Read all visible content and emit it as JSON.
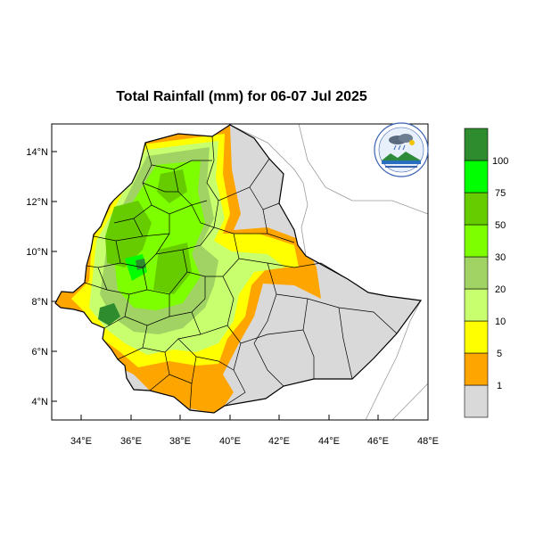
{
  "title": "Total Rainfall (mm) for 06-07 Jul 2025",
  "axes": {
    "lat_ticks": [
      "14°N",
      "12°N",
      "10°N",
      "8°N",
      "6°N",
      "4°N"
    ],
    "lon_ticks": [
      "34°E",
      "36°E",
      "38°E",
      "40°E",
      "42°E",
      "44°E",
      "46°E",
      "48°E"
    ]
  },
  "legend": {
    "labels": [
      "1",
      "5",
      "10",
      "20",
      "30",
      "50",
      "75",
      "100"
    ],
    "colors": [
      "#d9d9d9",
      "#ffa500",
      "#ffff00",
      "#c8ff6e",
      "#a0d264",
      "#7dff00",
      "#66cc00",
      "#00ff00",
      "#2e8b2e"
    ]
  },
  "logo": {
    "name": "ethiopian-meteorology-institute-logo",
    "text": "Ethiopian Meteorology Institute"
  },
  "colors": {
    "land": "#d9d9d9",
    "border": "#000000",
    "neighbour_border": "#999999"
  }
}
